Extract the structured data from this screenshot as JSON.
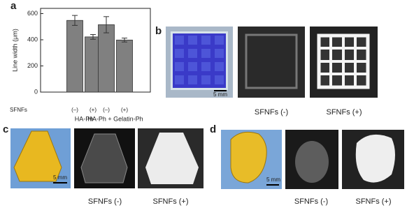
{
  "chart_data": {
    "type": "bar",
    "panel": "a",
    "y_label": "Line width (μm)",
    "categories": [
      "(–)",
      "(+)",
      "(–)",
      "(+)"
    ],
    "groups": [
      "HA-Ph",
      "HA-Ph + Gelatin-Ph"
    ],
    "row_label": "SFNFs",
    "values": [
      548,
      422,
      515,
      398
    ],
    "errors": [
      38,
      18,
      62,
      15
    ],
    "color": "#808080",
    "ylim": [
      0,
      640
    ],
    "yticks": [
      0,
      200,
      400,
      600
    ]
  },
  "panels": {
    "b": {
      "label": "b",
      "scale": "5 mm",
      "captions": [
        "SFNFs (-)",
        "SFNFs (+)"
      ]
    },
    "c": {
      "label": "c",
      "scale": "5 mm",
      "captions": [
        "SFNFs (-)",
        "SFNFs (+)"
      ]
    },
    "d": {
      "label": "d",
      "scale": "5 mm",
      "captions": [
        "SFNFs (-)",
        "SFNFs (+)"
      ]
    }
  }
}
